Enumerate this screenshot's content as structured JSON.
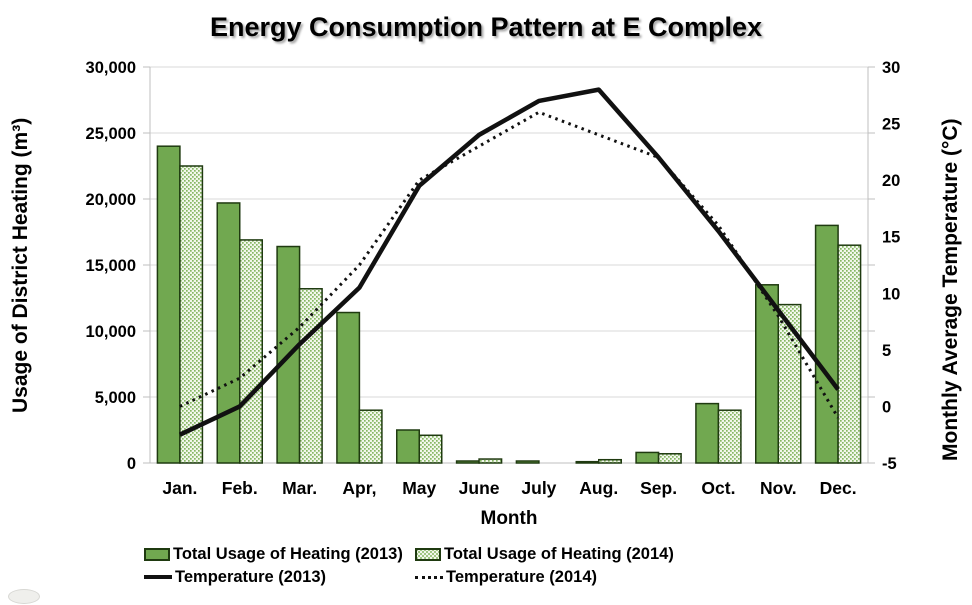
{
  "figure": {
    "title": "Energy Consumption Pattern at E Complex"
  },
  "chart_data": {
    "type": "bar+line combo",
    "title": "Energy Consumption Pattern at E Complex",
    "categories": [
      "Jan.",
      "Feb.",
      "Mar.",
      "Apr,",
      "May",
      "June",
      "July",
      "Aug.",
      "Sep.",
      "Oct.",
      "Nov.",
      "Dec."
    ],
    "series": [
      {
        "name": "Total Usage of Heating (2013)",
        "type": "bar",
        "axis": "left",
        "values": [
          24000,
          19700,
          16400,
          11400,
          2500,
          150,
          150,
          100,
          800,
          4500,
          13500,
          18000
        ]
      },
      {
        "name": "Total Usage of Heating (2014)",
        "type": "bar",
        "axis": "left",
        "values": [
          22500,
          16900,
          13200,
          4000,
          2100,
          300,
          0,
          250,
          700,
          4000,
          12000,
          16500
        ]
      },
      {
        "name": "Temperature (2013)",
        "type": "line",
        "style": "solid",
        "axis": "right",
        "values": [
          -2.5,
          0,
          5.5,
          10.5,
          19.5,
          24,
          27,
          28,
          22,
          15.5,
          8.5,
          1.5
        ]
      },
      {
        "name": "Temperature (2014)",
        "type": "line",
        "style": "dotted",
        "axis": "right",
        "values": [
          0,
          2.5,
          7,
          12.5,
          20,
          23,
          26,
          24,
          22,
          16,
          8,
          -1
        ]
      }
    ],
    "left_axis": {
      "title": "Usage of District Heating (m³)",
      "min": 0,
      "max": 30000,
      "step": 5000,
      "tick_labels": [
        "0",
        "5,000",
        "10,000",
        "15,000",
        "20,000",
        "25,000",
        "30,000"
      ]
    },
    "right_axis": {
      "title": "Monthly Average Temperature (°C)",
      "min": -5,
      "max": 30,
      "step": 5,
      "tick_labels": [
        "-5",
        "0",
        "5",
        "10",
        "15",
        "20",
        "25",
        "30"
      ]
    },
    "x_axis": {
      "title": "Month"
    },
    "legend": {
      "position": "bottom",
      "items": [
        "Total Usage of Heating (2013)",
        "Total Usage of Heating (2014)",
        "Temperature (2013)",
        "Temperature (2014)"
      ]
    },
    "colors": {
      "bar_2013_fill": "#71A850",
      "bar_border": "#1F3A10",
      "bar_2014_dot": "#86B763",
      "bar_2014_bg": "#F2F7EC",
      "line": "#111111",
      "gridline": "#D9D9D9",
      "axis": "#BFBFBF",
      "background": "#FFFFFF"
    },
    "grid": "horizontal-on"
  }
}
